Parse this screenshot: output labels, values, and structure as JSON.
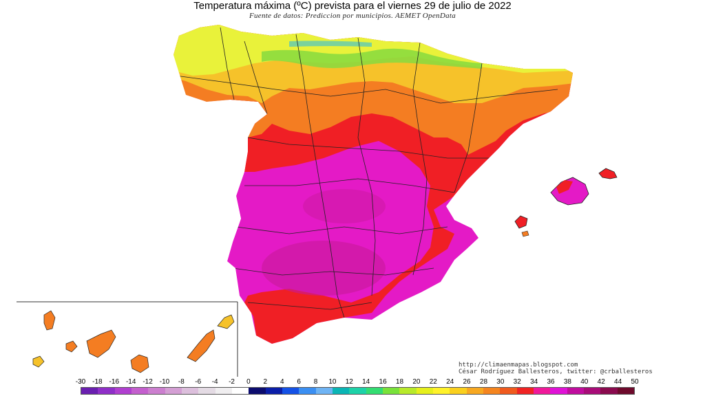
{
  "header": {
    "title": "Temperatura máxima (ºC) prevista para el viernes 29 de julio de 2022",
    "subtitle": "Fuente de datos: Prediccion por municipios. AEMET OpenData"
  },
  "credits": {
    "url": "http://climaenmapas.blogspot.com",
    "author": "César Rodríguez Ballesteros, twitter: @crballesteros"
  },
  "scale": {
    "labels": [
      "-30",
      "-18",
      "-16",
      "-14",
      "-12",
      "-10",
      "-8",
      "-6",
      "-4",
      "-2",
      "0",
      "2",
      "4",
      "6",
      "8",
      "10",
      "12",
      "14",
      "16",
      "18",
      "20",
      "22",
      "24",
      "26",
      "28",
      "30",
      "32",
      "34",
      "36",
      "38",
      "40",
      "42",
      "44",
      "50"
    ],
    "colors": [
      "#6a1fb0",
      "#8f2fc8",
      "#b03fd0",
      "#c45fce",
      "#cc7fcf",
      "#d49fd4",
      "#dcbfdc",
      "#e4dbe4",
      "#f0eef0",
      "#ffffff",
      "#0c0c6e",
      "#0b1ea8",
      "#1451e6",
      "#3b8ff2",
      "#6fb4f4",
      "#0ab5b5",
      "#1dd2a8",
      "#33dd72",
      "#79e23a",
      "#b8ea2a",
      "#e6f01c",
      "#fff22a",
      "#fad01e",
      "#f7a821",
      "#f5851f",
      "#f05a1e",
      "#f02323",
      "#f0199a",
      "#e012d6",
      "#c00d9e",
      "#a80c78",
      "#8a0a4e",
      "#6e0a2c"
    ]
  },
  "map_legend": {
    "palette": {
      "lt24": "#e9f23a",
      "t24_28": "#f6c22a",
      "t28_32": "#f47d22",
      "t32_36": "#f01f25",
      "gt36": "#e41ac6",
      "hot": "#c8199a"
    }
  }
}
